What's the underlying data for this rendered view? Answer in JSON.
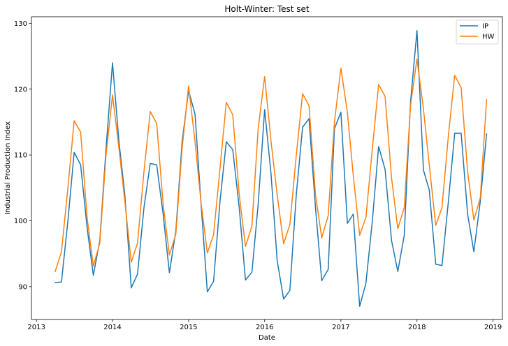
{
  "chart_data": {
    "type": "line",
    "title": "Holt-Winter: Test set",
    "xlabel": "Date",
    "ylabel": "Industrial Production Index",
    "xlim": [
      "2012-12-08",
      "2019-02-15"
    ],
    "ylim": [
      85,
      131
    ],
    "x_ticks": [
      "2013",
      "2014",
      "2015",
      "2016",
      "2017",
      "2018",
      "2019"
    ],
    "y_ticks": [
      90,
      100,
      110,
      120,
      130
    ],
    "grid": false,
    "legend_position": "top-right",
    "x": [
      "2013-04-01",
      "2013-05-01",
      "2013-06-01",
      "2013-07-01",
      "2013-08-01",
      "2013-09-01",
      "2013-10-01",
      "2013-11-01",
      "2013-12-01",
      "2014-01-01",
      "2014-02-01",
      "2014-03-01",
      "2014-04-01",
      "2014-05-01",
      "2014-06-01",
      "2014-07-01",
      "2014-08-01",
      "2014-09-01",
      "2014-10-01",
      "2014-11-01",
      "2014-12-01",
      "2015-01-01",
      "2015-02-01",
      "2015-03-01",
      "2015-04-01",
      "2015-05-01",
      "2015-06-01",
      "2015-07-01",
      "2015-08-01",
      "2015-09-01",
      "2015-10-01",
      "2015-11-01",
      "2015-12-01",
      "2016-01-01",
      "2016-02-01",
      "2016-03-01",
      "2016-04-01",
      "2016-05-01",
      "2016-06-01",
      "2016-07-01",
      "2016-08-01",
      "2016-09-01",
      "2016-10-01",
      "2016-11-01",
      "2016-12-01",
      "2017-01-01",
      "2017-02-01",
      "2017-03-01",
      "2017-04-01",
      "2017-05-01",
      "2017-06-01",
      "2017-07-01",
      "2017-08-01",
      "2017-09-01",
      "2017-10-01",
      "2017-11-01",
      "2017-12-01",
      "2018-01-01",
      "2018-02-01",
      "2018-03-01",
      "2018-04-01",
      "2018-05-01",
      "2018-06-01",
      "2018-07-01",
      "2018-08-01",
      "2018-09-01",
      "2018-10-01",
      "2018-11-01",
      "2018-12-01"
    ],
    "series": [
      {
        "name": "IP",
        "color": "#1f77b4",
        "values": [
          90.6,
          90.7,
          100.0,
          110.4,
          108.5,
          99.0,
          91.7,
          97.0,
          111.0,
          124.0,
          112.0,
          104.0,
          89.8,
          91.9,
          102.0,
          108.7,
          108.5,
          101.0,
          92.1,
          98.5,
          112.0,
          119.8,
          116.2,
          103.0,
          89.2,
          90.8,
          103.0,
          112.0,
          110.8,
          102.0,
          91.0,
          92.2,
          102.5,
          116.9,
          107.0,
          94.0,
          88.1,
          89.4,
          104.0,
          114.2,
          115.5,
          102.0,
          90.9,
          92.6,
          114.0,
          116.5,
          99.6,
          101.0,
          87.0,
          90.5,
          100.0,
          111.3,
          107.8,
          97.0,
          92.3,
          97.8,
          118.0,
          128.9,
          107.7,
          104.7,
          93.4,
          93.2,
          103.0,
          113.3,
          113.3,
          101.0,
          95.3,
          103.0,
          113.2
        ]
      },
      {
        "name": "HW",
        "color": "#ff7f0e",
        "values": [
          92.3,
          95.3,
          105.0,
          115.2,
          113.5,
          100.5,
          93.1,
          96.6,
          110.0,
          119.1,
          111.0,
          103.0,
          93.7,
          96.6,
          107.5,
          116.6,
          114.8,
          102.5,
          94.8,
          98.0,
          111.0,
          120.5,
          112.0,
          103.0,
          95.1,
          97.9,
          108.0,
          118.0,
          116.1,
          104.0,
          96.1,
          99.2,
          114.0,
          121.9,
          112.0,
          104.0,
          96.5,
          99.4,
          110.0,
          119.3,
          117.5,
          104.0,
          97.4,
          100.8,
          115.0,
          123.2,
          116.5,
          107.0,
          97.8,
          100.5,
          111.0,
          120.7,
          118.9,
          106.5,
          98.8,
          102.0,
          117.5,
          124.6,
          117.0,
          108.5,
          99.3,
          102.0,
          113.0,
          122.1,
          120.2,
          107.5,
          100.1,
          103.5,
          118.4
        ]
      }
    ]
  }
}
